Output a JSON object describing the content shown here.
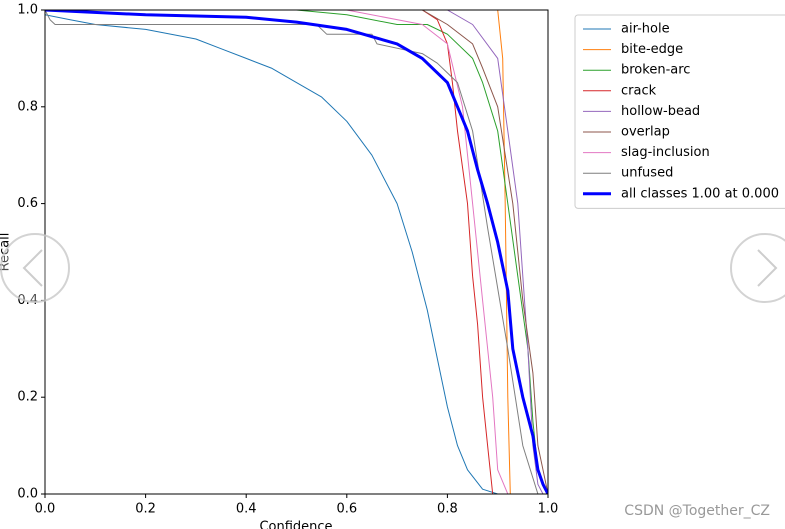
{
  "chart_data": {
    "type": "line",
    "xlabel": "Confidence",
    "ylabel": "Recall",
    "xlim": [
      0,
      1
    ],
    "ylim": [
      0,
      1
    ],
    "xticks": [
      {
        "value": 0,
        "label": "0.0"
      },
      0.2,
      0.4,
      0.6,
      0.8,
      {
        "value": 1,
        "label": "1.0"
      }
    ],
    "yticks": [
      {
        "value": 0,
        "label": "0.0"
      },
      0.2,
      0.4,
      0.6,
      0.8,
      {
        "value": 1,
        "label": "1.0"
      }
    ],
    "legend": "outside-right",
    "series": [
      {
        "name": "air-hole",
        "color": "#1f77b4",
        "width": 1,
        "x": [
          0,
          0.05,
          0.1,
          0.2,
          0.3,
          0.35,
          0.4,
          0.45,
          0.5,
          0.55,
          0.6,
          0.65,
          0.7,
          0.73,
          0.76,
          0.78,
          0.8,
          0.82,
          0.84,
          0.87,
          0.9
        ],
        "values": [
          0.99,
          0.98,
          0.97,
          0.96,
          0.94,
          0.92,
          0.9,
          0.88,
          0.85,
          0.82,
          0.77,
          0.7,
          0.6,
          0.5,
          0.38,
          0.28,
          0.18,
          0.1,
          0.05,
          0.01,
          0
        ]
      },
      {
        "name": "bite-edge",
        "color": "#ff7f0e",
        "width": 1,
        "x": [
          0,
          0.9,
          0.91,
          0.915,
          0.92,
          0.925
        ],
        "values": [
          1,
          1,
          0.9,
          0.6,
          0.2,
          0
        ]
      },
      {
        "name": "broken-arc",
        "color": "#2ca02c",
        "width": 1,
        "x": [
          0,
          0.5,
          0.6,
          0.7,
          0.76,
          0.8,
          0.85,
          0.87,
          0.9,
          0.92,
          0.94,
          0.96,
          0.97,
          0.98,
          1
        ],
        "values": [
          1,
          1,
          0.99,
          0.97,
          0.97,
          0.95,
          0.9,
          0.85,
          0.75,
          0.6,
          0.45,
          0.3,
          0.15,
          0.05,
          0
        ]
      },
      {
        "name": "crack",
        "color": "#d62728",
        "width": 1,
        "x": [
          0,
          0.75,
          0.78,
          0.8,
          0.81,
          0.82,
          0.84,
          0.85,
          0.86,
          0.87,
          0.88,
          0.89
        ],
        "values": [
          1,
          1,
          0.98,
          0.93,
          0.85,
          0.75,
          0.6,
          0.45,
          0.35,
          0.2,
          0.1,
          0
        ]
      },
      {
        "name": "hollow-bead",
        "color": "#9467bd",
        "width": 1,
        "x": [
          0,
          0.8,
          0.85,
          0.9,
          0.92,
          0.94,
          0.95,
          0.96,
          0.97,
          0.98,
          0.99
        ],
        "values": [
          1,
          1,
          0.97,
          0.9,
          0.75,
          0.6,
          0.45,
          0.3,
          0.1,
          0.02,
          0
        ]
      },
      {
        "name": "overlap",
        "color": "#8c564b",
        "width": 1,
        "x": [
          0,
          0.75,
          0.8,
          0.85,
          0.87,
          0.9,
          0.93,
          0.95,
          0.97,
          0.98,
          0.99,
          1
        ],
        "values": [
          1,
          1,
          0.97,
          0.93,
          0.88,
          0.8,
          0.6,
          0.4,
          0.25,
          0.1,
          0.05,
          0
        ]
      },
      {
        "name": "slag-inclusion",
        "color": "#e377c2",
        "width": 1,
        "x": [
          0,
          0.6,
          0.75,
          0.8,
          0.83,
          0.85,
          0.87,
          0.89,
          0.9,
          0.92
        ],
        "values": [
          1,
          1,
          0.97,
          0.93,
          0.8,
          0.6,
          0.4,
          0.2,
          0.05,
          0
        ]
      },
      {
        "name": "unfused",
        "color": "#7f7f7f",
        "width": 1,
        "x": [
          0,
          0.01,
          0.02,
          0.1,
          0.54,
          0.56,
          0.65,
          0.66,
          0.75,
          0.78,
          0.8,
          0.82,
          0.85,
          0.88,
          0.92,
          0.95,
          0.98
        ],
        "values": [
          1,
          0.98,
          0.97,
          0.97,
          0.97,
          0.95,
          0.95,
          0.93,
          0.91,
          0.89,
          0.87,
          0.85,
          0.75,
          0.55,
          0.3,
          0.1,
          0
        ]
      },
      {
        "name": "all classes 1.00 at 0.000",
        "color": "#0000ff",
        "width": 3,
        "x": [
          0,
          0.2,
          0.4,
          0.5,
          0.6,
          0.7,
          0.75,
          0.8,
          0.82,
          0.84,
          0.86,
          0.88,
          0.9,
          0.92,
          0.93,
          0.95,
          0.97,
          0.98,
          0.99,
          1
        ],
        "values": [
          1,
          0.99,
          0.985,
          0.975,
          0.96,
          0.93,
          0.9,
          0.85,
          0.8,
          0.75,
          0.67,
          0.6,
          0.52,
          0.42,
          0.3,
          0.2,
          0.12,
          0.05,
          0.02,
          0
        ]
      }
    ]
  },
  "watermark": "CSDN @Together_CZ"
}
